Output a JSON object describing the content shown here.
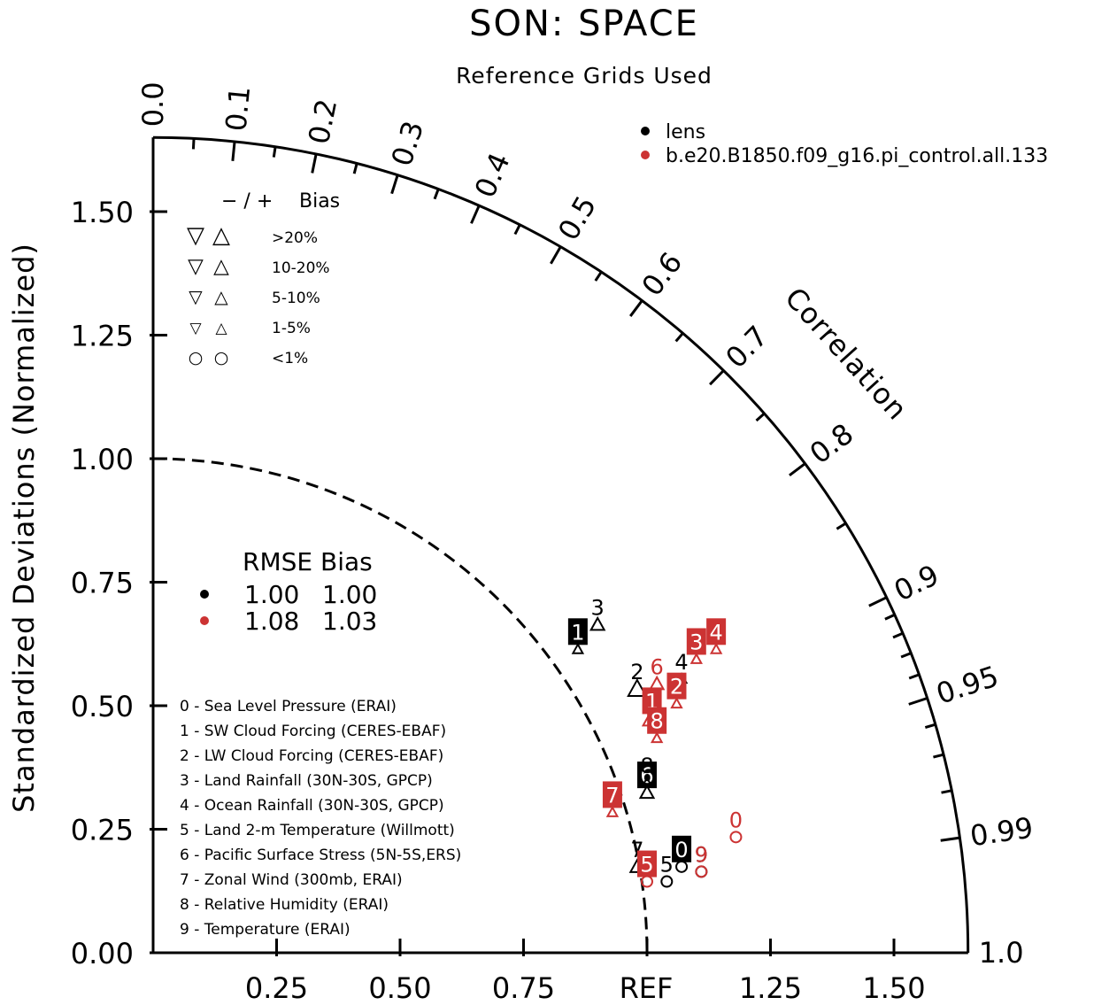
{
  "chart_data": {
    "type": "taylor",
    "title": "SON: SPACE",
    "subtitle": "Reference Grids Used",
    "y_axis_label": "Standardized Deviations (Normalized)",
    "arc_label": "Correlation",
    "ref_label": "REF",
    "std_max": 1.65,
    "ref_std": 1.0,
    "y_ticks": [
      "0.00",
      "0.25",
      "0.50",
      "0.75",
      "1.00",
      "1.25",
      "1.50"
    ],
    "x_ticks": [
      "0.25",
      "0.50",
      "0.75",
      "1.25",
      "1.50"
    ],
    "corr_labels": [
      {
        "value": 0.0,
        "label": "0.0"
      },
      {
        "value": 0.1,
        "label": "0.1"
      },
      {
        "value": 0.2,
        "label": "0.2"
      },
      {
        "value": 0.3,
        "label": "0.3"
      },
      {
        "value": 0.4,
        "label": "0.4"
      },
      {
        "value": 0.5,
        "label": "0.5"
      },
      {
        "value": 0.6,
        "label": "0.6"
      },
      {
        "value": 0.7,
        "label": "0.7"
      },
      {
        "value": 0.8,
        "label": "0.8"
      },
      {
        "value": 0.9,
        "label": "0.9"
      },
      {
        "value": 0.95,
        "label": "0.95"
      },
      {
        "value": 0.99,
        "label": "0.99"
      },
      {
        "value": 1.0,
        "label": "1.0"
      }
    ],
    "corr_minor": [
      0.05,
      0.15,
      0.25,
      0.35,
      0.45,
      0.55,
      0.65,
      0.75,
      0.85,
      0.91,
      0.92,
      0.93,
      0.94,
      0.96,
      0.97,
      0.98
    ],
    "series": [
      {
        "name": "lens",
        "color": "#000000",
        "rmse": "1.00",
        "bias": "1.00",
        "points": [
          {
            "id": "0",
            "x": 1.07,
            "y": 0.21,
            "sym": "circle"
          },
          {
            "id": "1",
            "x": 0.86,
            "y": 0.65,
            "sym": "tri-up-s"
          },
          {
            "id": "2",
            "x": 0.98,
            "y": 0.57,
            "sym": "tri-up-l"
          },
          {
            "id": "3",
            "x": 0.9,
            "y": 0.7,
            "sym": "tri-up-m"
          },
          {
            "id": "4",
            "x": 1.07,
            "y": 0.59,
            "sym": "tri-up-s"
          },
          {
            "id": "5",
            "x": 1.04,
            "y": 0.18,
            "sym": "circle"
          },
          {
            "id": "6",
            "x": 1.0,
            "y": 0.36,
            "sym": "tri-up-m"
          },
          {
            "id": "7",
            "x": 0.98,
            "y": 0.21,
            "sym": "tri-up-m"
          },
          {
            "id": "8",
            "x": 1.0,
            "y": 0.38,
            "sym": "tri-up-s"
          },
          {
            "id": "9",
            "x": 1.11,
            "y": 0.2,
            "sym": "circle"
          }
        ]
      },
      {
        "name": "b.e20.B1850.f09_g16.pi_control.all.133",
        "color": "#cc3333",
        "rmse": "1.08",
        "bias": "1.03",
        "points": [
          {
            "id": "0",
            "x": 1.18,
            "y": 0.27,
            "sym": "circle"
          },
          {
            "id": "1",
            "x": 1.01,
            "y": 0.51,
            "sym": "tri-up-l"
          },
          {
            "id": "2",
            "x": 1.06,
            "y": 0.54,
            "sym": "tri-up-s"
          },
          {
            "id": "3",
            "x": 1.1,
            "y": 0.63,
            "sym": "tri-up-s"
          },
          {
            "id": "4",
            "x": 1.14,
            "y": 0.65,
            "sym": "tri-up-s"
          },
          {
            "id": "5",
            "x": 1.0,
            "y": 0.18,
            "sym": "circle"
          },
          {
            "id": "6",
            "x": 1.02,
            "y": 0.58,
            "sym": "tri-up-m"
          },
          {
            "id": "7",
            "x": 0.93,
            "y": 0.32,
            "sym": "tri-up-s"
          },
          {
            "id": "8",
            "x": 1.02,
            "y": 0.47,
            "sym": "tri-up-s"
          },
          {
            "id": "9",
            "x": 1.11,
            "y": 0.2,
            "sym": "circle"
          }
        ]
      }
    ],
    "bias_legend": {
      "header_symbols": "−  /  +",
      "header_label": "Bias",
      "rows": [
        {
          "down": "▽",
          "up": "△",
          "label": ">20%",
          "size": 22
        },
        {
          "down": "▽",
          "up": "△",
          "label": "10-20%",
          "size": 19
        },
        {
          "down": "▽",
          "up": "△",
          "label": "5-10%",
          "size": 16
        },
        {
          "down": "▽",
          "up": "△",
          "label": "1-5%",
          "size": 13
        },
        {
          "down": "○",
          "up": "○",
          "label": "<1%",
          "size": 15
        }
      ]
    },
    "rmse_legend": {
      "header": "RMSE Bias"
    },
    "variables": [
      "0 - Sea Level Pressure (ERAI)",
      "1 - SW Cloud Forcing (CERES-EBAF)",
      "2 - LW Cloud Forcing (CERES-EBAF)",
      "3 - Land Rainfall (30N-30S, GPCP)",
      "4 - Ocean Rainfall (30N-30S, GPCP)",
      "5 - Land 2-m Temperature (Willmott)",
      "6 - Pacific Surface Stress (5N-5S,ERS)",
      "7 - Zonal Wind (300mb, ERAI)",
      "8 - Relative Humidity (ERAI)",
      "9 - Temperature (ERAI)"
    ]
  }
}
